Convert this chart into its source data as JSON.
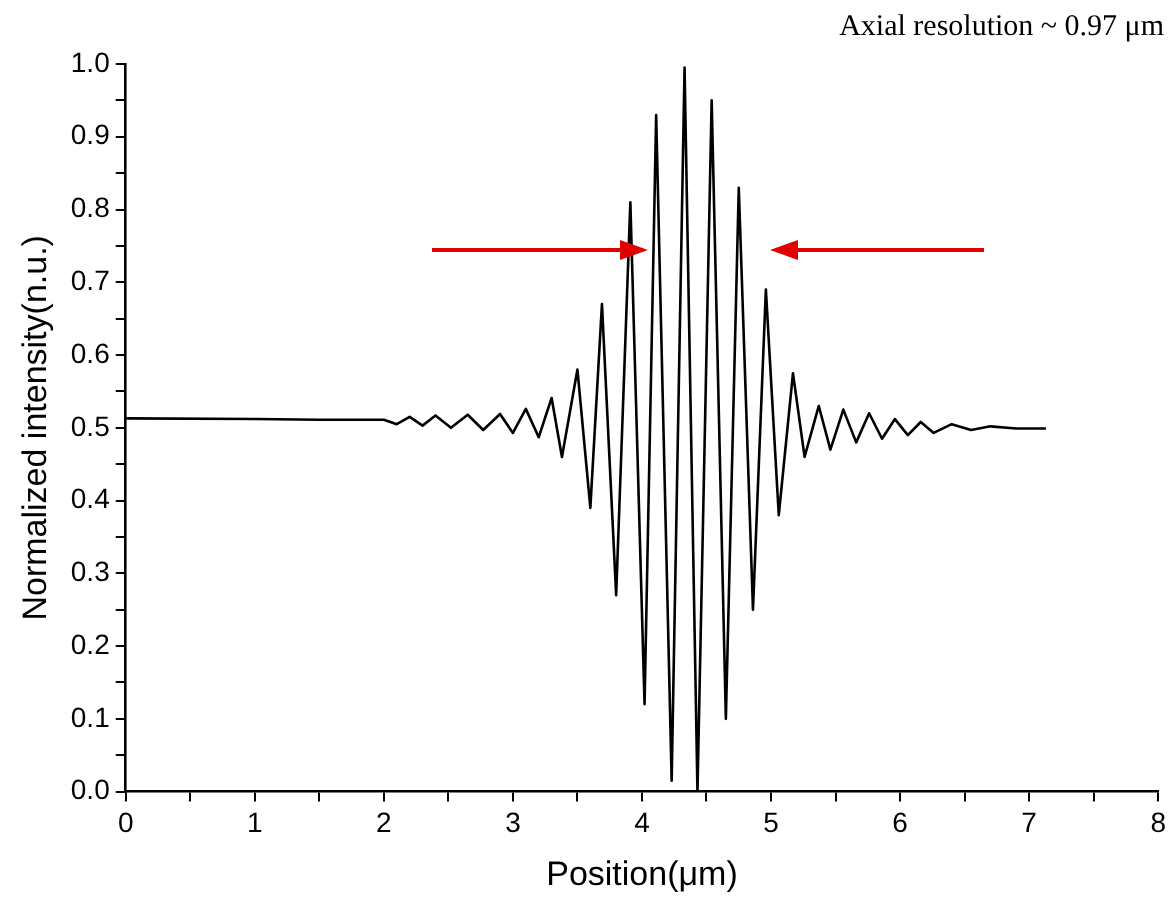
{
  "chart_data": {
    "type": "line",
    "xlabel": "Position(μm)",
    "ylabel": "Normalized intensity(n.u.)",
    "annotations": [
      "Axial resolution ~ 0.97 μm"
    ],
    "x": [
      0,
      1,
      1.5,
      2.0,
      2.1,
      2.2,
      2.3,
      2.4,
      2.52,
      2.65,
      2.77,
      2.9,
      3.0,
      3.1,
      3.2,
      3.3,
      3.38,
      3.5,
      3.6,
      3.69,
      3.8,
      3.91,
      4.02,
      4.11,
      4.23,
      4.33,
      4.43,
      4.54,
      4.65,
      4.75,
      4.86,
      4.96,
      5.06,
      5.17,
      5.26,
      5.37,
      5.46,
      5.56,
      5.66,
      5.76,
      5.86,
      5.96,
      6.06,
      6.16,
      6.26,
      6.4,
      6.55,
      6.7,
      6.9,
      7.13
    ],
    "series": [
      {
        "color": "#000000",
        "values": [
          0.513,
          0.512,
          0.511,
          0.511,
          0.505,
          0.515,
          0.503,
          0.517,
          0.5,
          0.518,
          0.497,
          0.519,
          0.493,
          0.526,
          0.487,
          0.541,
          0.46,
          0.58,
          0.39,
          0.67,
          0.27,
          0.81,
          0.12,
          0.93,
          0.015,
          0.995,
          0.0,
          0.95,
          0.1,
          0.83,
          0.25,
          0.69,
          0.38,
          0.575,
          0.46,
          0.53,
          0.47,
          0.525,
          0.48,
          0.52,
          0.485,
          0.512,
          0.49,
          0.508,
          0.493,
          0.505,
          0.497,
          0.502,
          0.499,
          0.499
        ]
      }
    ],
    "xlim": [
      0,
      8
    ],
    "xticks": [
      0,
      {
        "value": 0.5,
        "label": null
      },
      1,
      {
        "value": 1.5,
        "label": null
      },
      2,
      {
        "value": 2.5,
        "label": null
      },
      3,
      {
        "value": 3.5,
        "label": null
      },
      4,
      {
        "value": 4.5,
        "label": null
      },
      5,
      {
        "value": 5.5,
        "label": null
      },
      6,
      {
        "value": 6.5,
        "label": null
      },
      7,
      {
        "value": 7.5,
        "label": null
      },
      8
    ],
    "ylim": [
      0,
      1
    ],
    "yticks": [
      {
        "value": 0,
        "label": "0.0"
      },
      {
        "value": 0.05,
        "label": null
      },
      {
        "value": 0.1,
        "label": "0.1"
      },
      {
        "value": 0.15,
        "label": null
      },
      {
        "value": 0.2,
        "label": "0.2"
      },
      {
        "value": 0.25,
        "label": null
      },
      {
        "value": 0.3,
        "label": "0.3"
      },
      {
        "value": 0.35,
        "label": null
      },
      {
        "value": 0.4,
        "label": "0.4"
      },
      {
        "value": 0.45,
        "label": null
      },
      {
        "value": 0.5,
        "label": "0.5"
      },
      {
        "value": 0.55,
        "label": null
      },
      {
        "value": 0.6,
        "label": "0.6"
      },
      {
        "value": 0.65,
        "label": null
      },
      {
        "value": 0.7,
        "label": "0.7"
      },
      {
        "value": 0.75,
        "label": null
      },
      {
        "value": 0.8,
        "label": "0.8"
      },
      {
        "value": 0.85,
        "label": null
      },
      {
        "value": 0.9,
        "label": "0.9"
      },
      {
        "value": 0.95,
        "label": null
      },
      {
        "value": 1,
        "label": "1.0"
      }
    ],
    "grid": false,
    "legend": false,
    "marker": "none",
    "line_style": "solid"
  }
}
